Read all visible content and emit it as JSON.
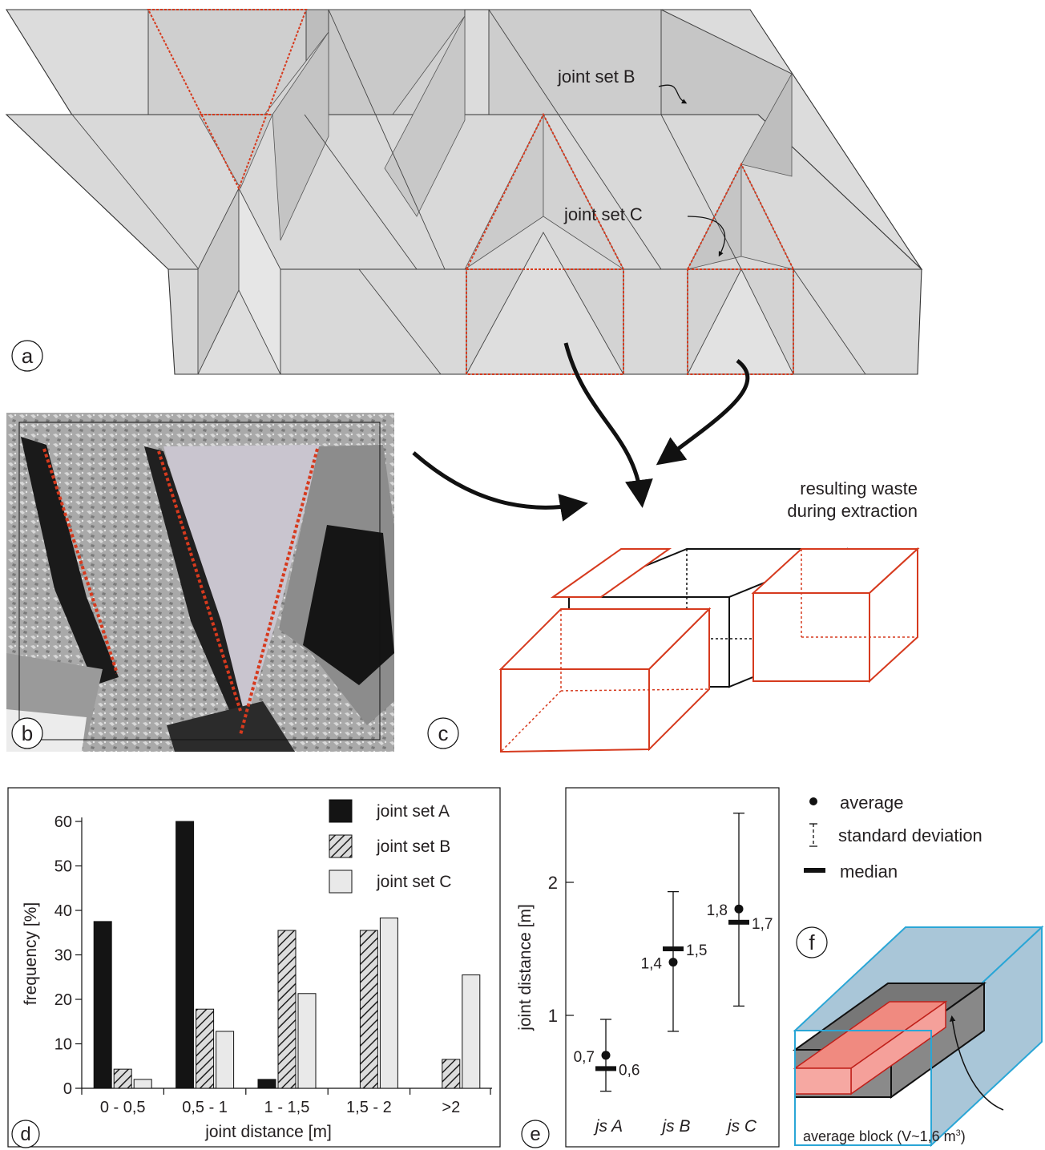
{
  "panel_letters": {
    "a": "a",
    "b": "b",
    "c": "c",
    "d": "d",
    "e": "e",
    "f": "f"
  },
  "panel_a": {
    "label_b": "joint set B",
    "label_c": "joint set C"
  },
  "panel_c": {
    "caption_line1": "resulting waste",
    "caption_line2": "during extraction"
  },
  "chart_d": {
    "type": "bar",
    "categories": [
      "0 - 0,5",
      "0,5 - 1",
      "1 - 1,5",
      "1,5 - 2",
      ">2"
    ],
    "series": [
      {
        "name": "joint set A",
        "values": [
          37.5,
          60,
          2,
          0,
          0
        ],
        "color": "#141414"
      },
      {
        "name": "joint set B",
        "values": [
          4.3,
          17.8,
          35.5,
          35.5,
          6.5
        ],
        "color": "#d6d6d6"
      },
      {
        "name": "joint set C",
        "values": [
          2,
          12.8,
          21.3,
          38.3,
          25.5
        ],
        "color": "#e9e9e9"
      }
    ],
    "ylabel": "frequency [%]",
    "xlabel": "joint distance [m]",
    "yticks": [
      "0",
      "10",
      "20",
      "30",
      "40",
      "50",
      "60"
    ],
    "ylim": [
      0,
      60
    ]
  },
  "chart_e": {
    "type": "scatter",
    "ylabel": "joint distance [m]",
    "yticks": [
      "1",
      "2"
    ],
    "categories": [
      "js A",
      "js B",
      "js C"
    ],
    "average": [
      0.7,
      1.4,
      1.8
    ],
    "median": [
      0.6,
      1.5,
      1.7
    ],
    "std_low": [
      0.43,
      0.88,
      1.07
    ],
    "std_high": [
      0.97,
      1.93,
      2.52
    ],
    "average_labels": [
      "0,7",
      "1,4",
      "1,8"
    ],
    "median_labels": [
      "0,6",
      "1,5",
      "1,7"
    ]
  },
  "legend_e": {
    "average": "average",
    "std": "standard deviation",
    "median": "median"
  },
  "panel_f": {
    "caption": "average block (V~1,6 m"
  }
}
